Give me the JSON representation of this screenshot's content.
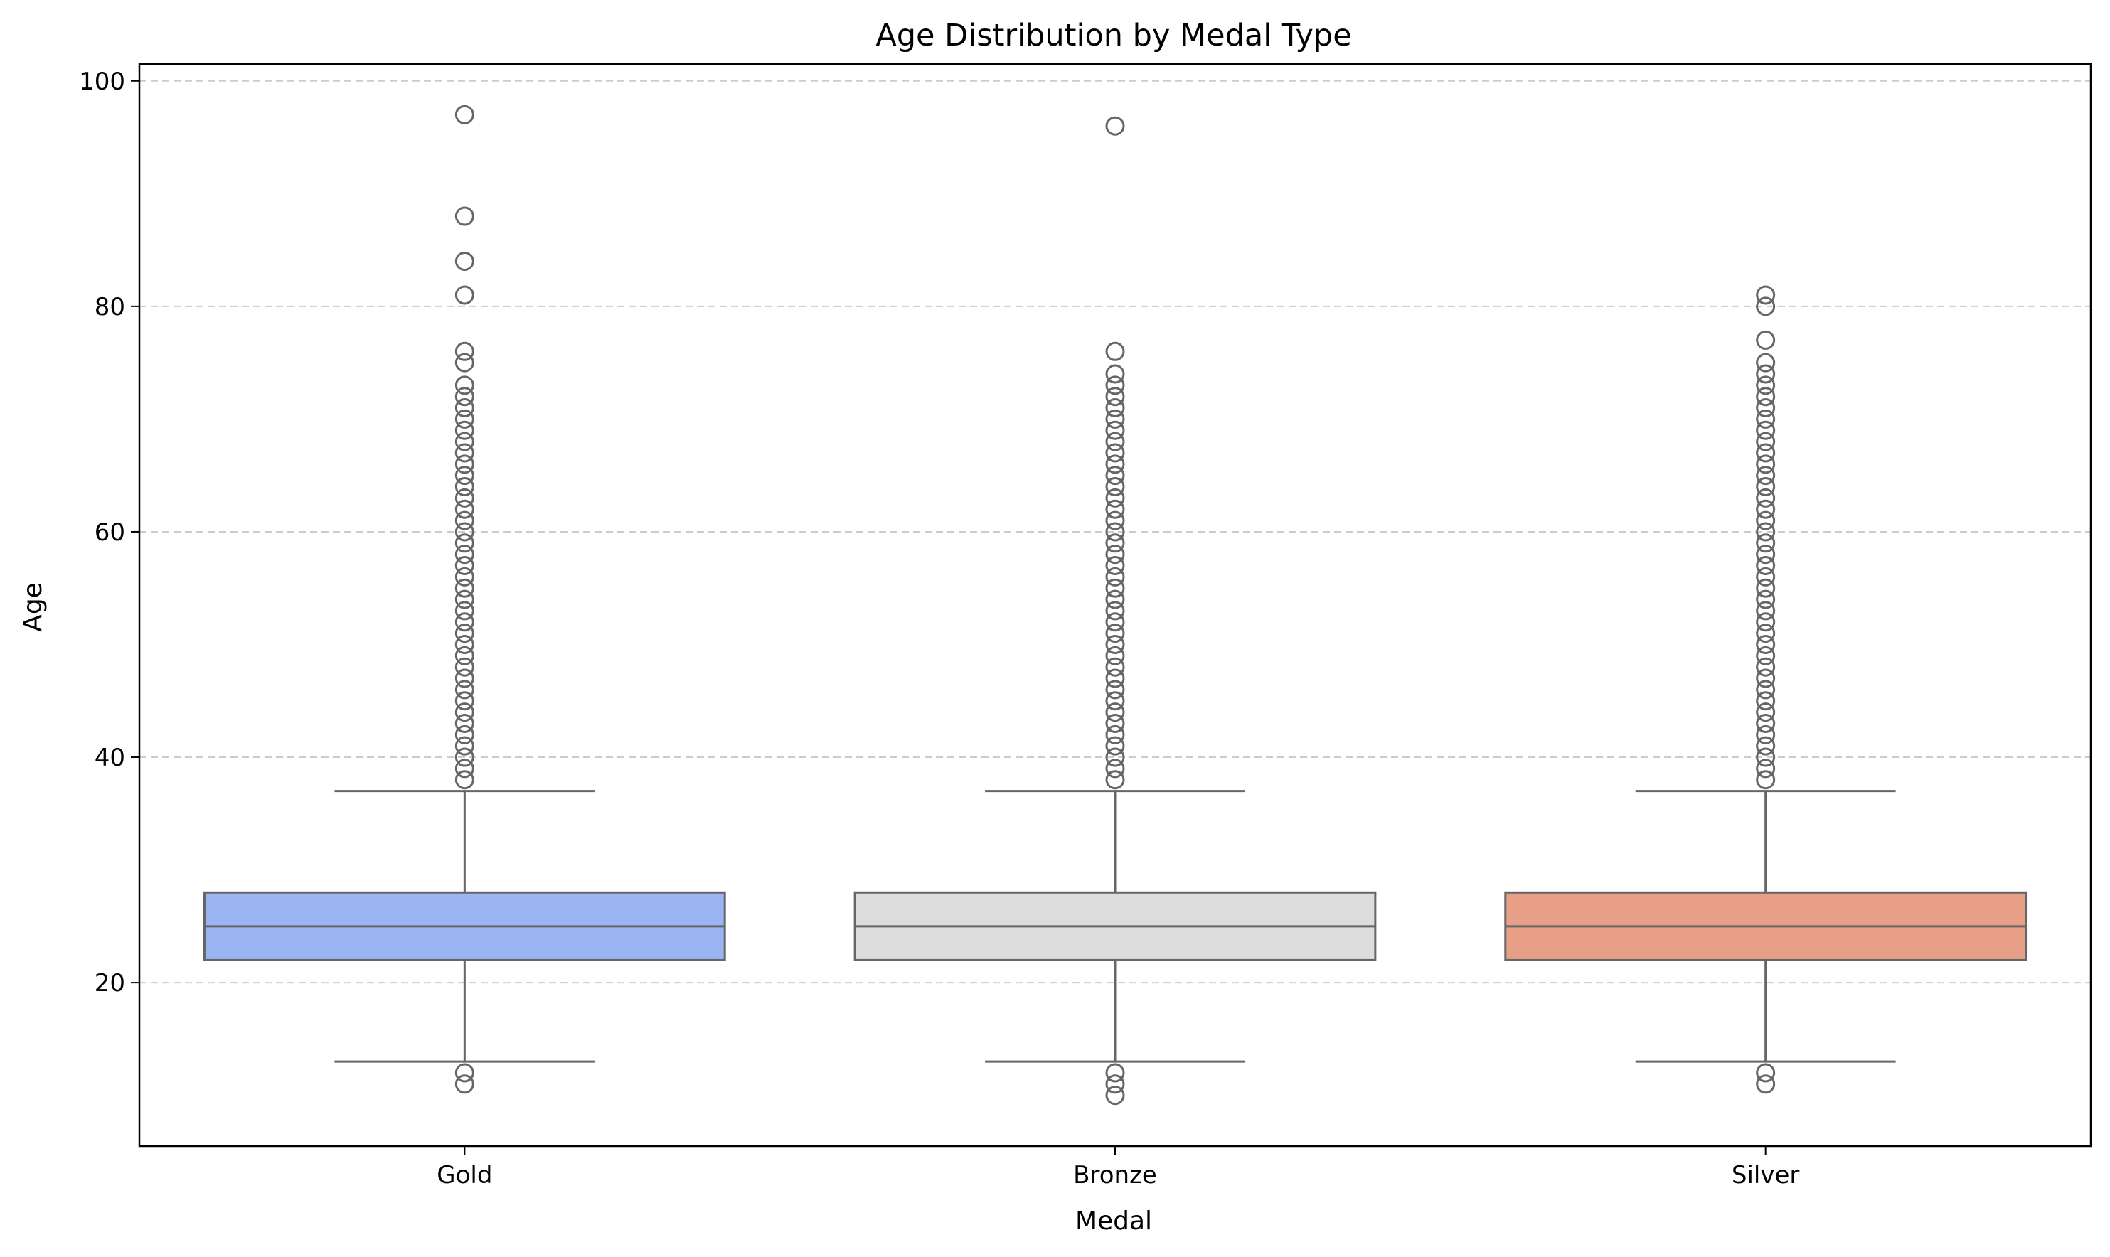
{
  "chart_data": {
    "type": "box",
    "title": "Age Distribution by Medal Type",
    "xlabel": "Medal",
    "ylabel": "Age",
    "ylim": [
      5.5,
      101.5
    ],
    "yticks": [
      20,
      40,
      60,
      80,
      100
    ],
    "grid": {
      "y": true,
      "x": false,
      "style": "dashed"
    },
    "categories": [
      "Gold",
      "Bronze",
      "Silver"
    ],
    "colors": [
      "#9ab5f2",
      "#dcdcdc",
      "#e7a087"
    ],
    "stroke_color": "#666666",
    "boxes": [
      {
        "name": "Gold",
        "whisker_low": 13,
        "q1": 22,
        "median": 25,
        "q3": 28,
        "whisker_high": 37,
        "outliers": [
          11,
          12,
          38,
          39,
          40,
          41,
          42,
          43,
          44,
          45,
          46,
          47,
          48,
          49,
          50,
          51,
          52,
          53,
          54,
          55,
          56,
          57,
          58,
          59,
          60,
          61,
          62,
          63,
          64,
          65,
          66,
          67,
          68,
          69,
          70,
          71,
          72,
          73,
          75,
          76,
          81,
          84,
          88,
          97
        ]
      },
      {
        "name": "Bronze",
        "whisker_low": 13,
        "q1": 22,
        "median": 25,
        "q3": 28,
        "whisker_high": 37,
        "outliers": [
          10,
          11,
          12,
          38,
          39,
          40,
          41,
          42,
          43,
          44,
          45,
          46,
          47,
          48,
          49,
          50,
          51,
          52,
          53,
          54,
          55,
          56,
          57,
          58,
          59,
          60,
          61,
          62,
          63,
          64,
          65,
          66,
          67,
          68,
          69,
          70,
          71,
          72,
          73,
          74,
          76,
          96
        ]
      },
      {
        "name": "Silver",
        "whisker_low": 13,
        "q1": 22,
        "median": 25,
        "q3": 28,
        "whisker_high": 37,
        "outliers": [
          11,
          12,
          38,
          39,
          40,
          41,
          42,
          43,
          44,
          45,
          46,
          47,
          48,
          49,
          50,
          51,
          52,
          53,
          54,
          55,
          56,
          57,
          58,
          59,
          60,
          61,
          62,
          63,
          64,
          65,
          66,
          67,
          68,
          69,
          70,
          71,
          72,
          73,
          74,
          75,
          77,
          80,
          81
        ]
      }
    ]
  }
}
